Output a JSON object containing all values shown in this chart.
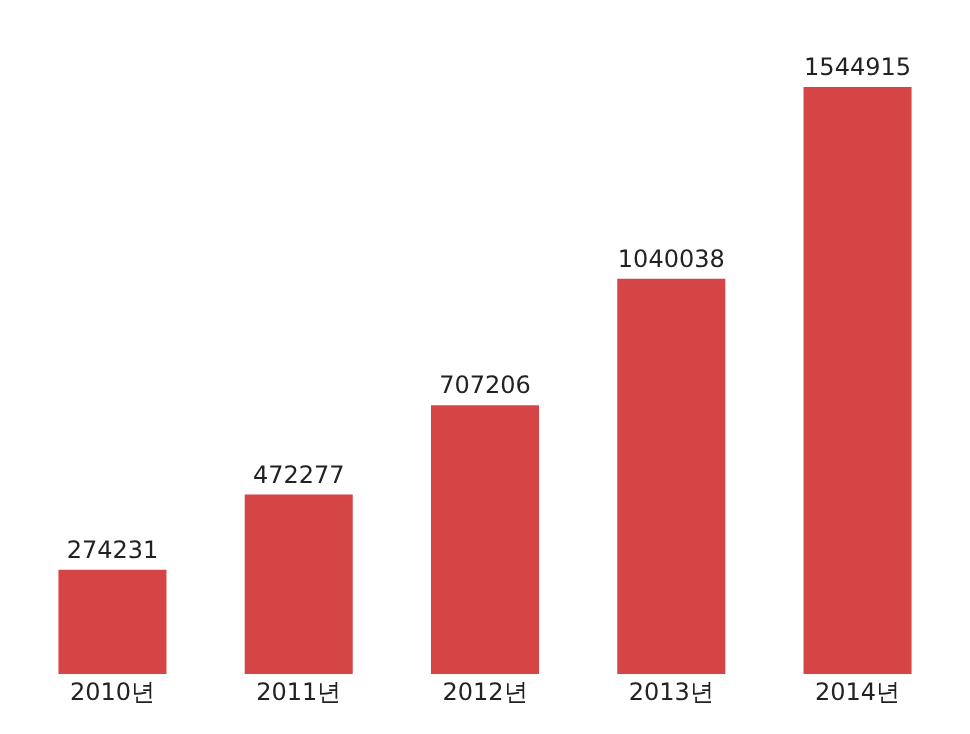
{
  "chart_data": {
    "type": "bar",
    "categories": [
      "2010년",
      "2011년",
      "2012년",
      "2013년",
      "2014년"
    ],
    "values": [
      274231,
      472277,
      707206,
      1040038,
      1544915
    ],
    "color": "#d64545",
    "data_labels": true,
    "grid": false,
    "legend": false
  }
}
